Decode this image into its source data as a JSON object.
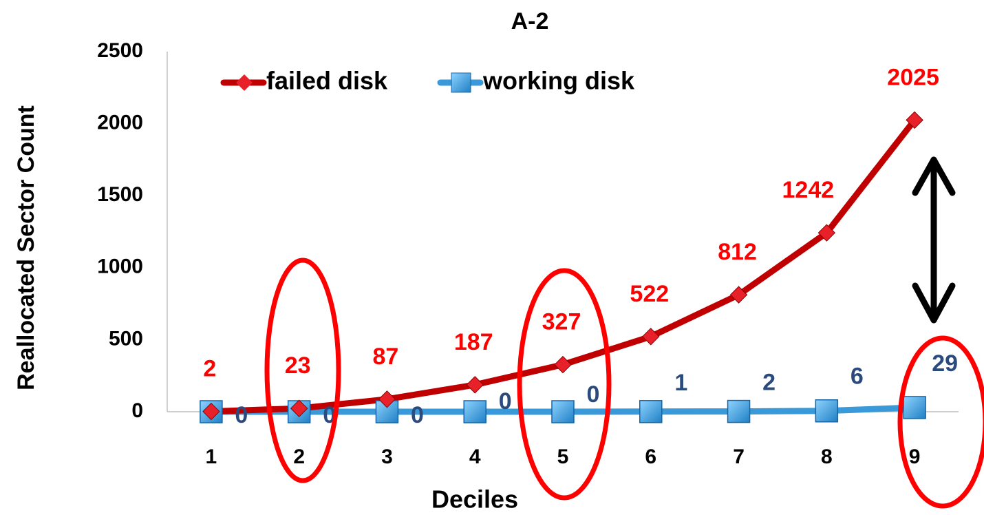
{
  "chart_data": {
    "type": "line",
    "title": "A-2",
    "x_label": "Deciles",
    "y_label": "Reallocated Sector Count",
    "categories": [
      "1",
      "2",
      "3",
      "4",
      "5",
      "6",
      "7",
      "8",
      "9"
    ],
    "ylim": [
      0,
      2500
    ],
    "yticks": [
      0,
      500,
      1000,
      1500,
      2000,
      2500
    ],
    "grid": false,
    "series": [
      {
        "name": "failed disk",
        "color": "#c00000",
        "marker": "diamond",
        "marker_color": "#e8202a",
        "label_color": "#ff0000",
        "values": [
          2,
          23,
          87,
          187,
          327,
          522,
          812,
          1242,
          2025
        ]
      },
      {
        "name": "working disk",
        "color": "#3a9ad9",
        "marker": "square",
        "marker_color": "#3da5e6",
        "label_color": "#2b4b7e",
        "values": [
          0,
          0,
          0,
          0,
          0,
          1,
          2,
          6,
          29
        ]
      }
    ]
  }
}
